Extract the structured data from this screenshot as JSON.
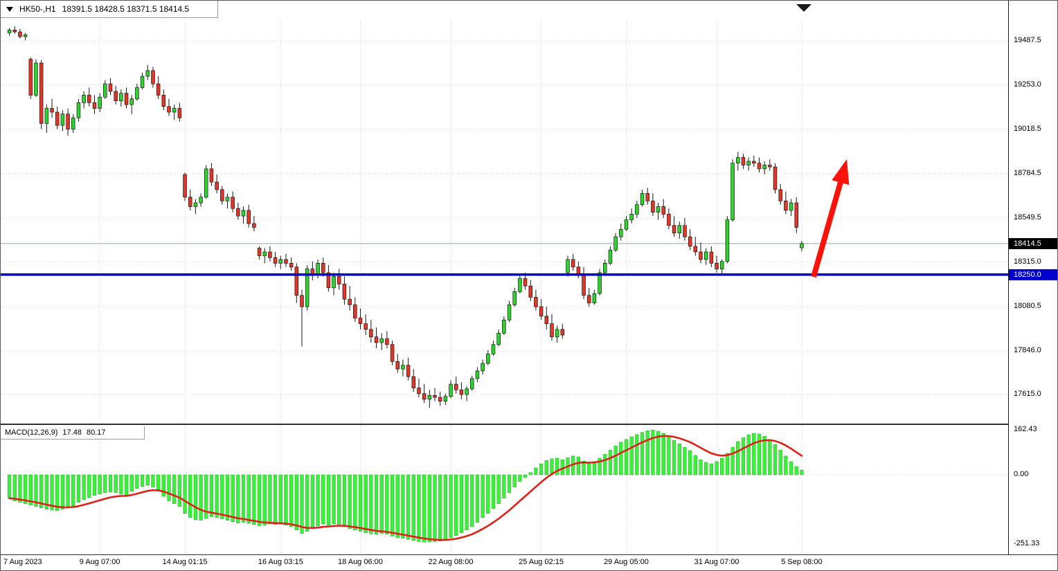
{
  "window": {
    "title_symbol": "HK50-,H1",
    "title_ohlc": "18391.5 18428.5 18371.5 18414.5"
  },
  "main_panel": {
    "axis_labels": [
      "19487.5",
      "19253.0",
      "19018.5",
      "18784.5",
      "18549.5",
      "18315.0",
      "18080.5",
      "17846.0",
      "17615.0"
    ],
    "price_tag_current": "18414.5",
    "price_tag_level": "18250.0"
  },
  "macd_panel": {
    "indicator_label": "MACD(12,26,9)",
    "value_main": "17.48",
    "value_signal": "80.17",
    "axis_labels": [
      "162.43",
      "0.00",
      "-251.33"
    ]
  },
  "time_axis": {
    "labels": [
      "7 Aug 2023",
      "9 Aug 07:00",
      "14 Aug 01:15",
      "16 Aug 03:15",
      "18 Aug 06:00",
      "22 Aug 08:00",
      "25 Aug 02:15",
      "29 Aug 05:00",
      "31 Aug 07:00",
      "5 Sep 08:00"
    ]
  },
  "colors": {
    "bull": "#2ed42e",
    "bear": "#e3362b",
    "wick": "#15170f",
    "macd_hist": "#3af23a",
    "macd_signal": "#e02015",
    "level_line": "#0202cf",
    "current_line": "#8aa6a6",
    "arrow": "#fb1309",
    "grid": "#c6c8cc",
    "tag_current_bg": "#000000",
    "tag_level_bg": "#0000cd"
  },
  "chart_data": {
    "type": "candlestick",
    "symbol": "HK50",
    "timeframe": "H1",
    "title": "HK50-,H1 18391.5 18428.5 18371.5 18414.5",
    "last_ohlc": {
      "open": 18391.5,
      "high": 18428.5,
      "low": 18371.5,
      "close": 18414.5
    },
    "current_price": 18414.5,
    "support_level": 18250.0,
    "annotation": {
      "type": "arrow-up",
      "color": "red",
      "near_price_from": 18260,
      "near_price_to": 18830
    },
    "y_ticks": [
      19487.5,
      19253.0,
      19018.5,
      18784.5,
      18549.5,
      18315.0,
      18080.5,
      17846.0,
      17615.0
    ],
    "x_labels": [
      "7 Aug 2023",
      "9 Aug 07:00",
      "14 Aug 01:15",
      "16 Aug 03:15",
      "18 Aug 06:00",
      "22 Aug 08:00",
      "25 Aug 02:15",
      "29 Aug 05:00",
      "31 Aug 07:00",
      "5 Sep 08:00"
    ],
    "x_label_indices": [
      0,
      17,
      33,
      51,
      66,
      83,
      100,
      116,
      133,
      149
    ],
    "candles": [
      [
        19530,
        19555,
        19515,
        19545
      ],
      [
        19545,
        19565,
        19525,
        19535
      ],
      [
        19535,
        19550,
        19500,
        19510
      ],
      [
        19510,
        19530,
        19490,
        19520
      ],
      [
        19390,
        19400,
        19180,
        19200
      ],
      [
        19200,
        19390,
        19190,
        19370
      ],
      [
        19370,
        19385,
        19020,
        19050
      ],
      [
        19050,
        19150,
        19000,
        19130
      ],
      [
        19130,
        19180,
        19080,
        19110
      ],
      [
        19110,
        19140,
        19020,
        19040
      ],
      [
        19040,
        19120,
        19010,
        19100
      ],
      [
        19100,
        19130,
        18985,
        19020
      ],
      [
        19020,
        19100,
        19000,
        19080
      ],
      [
        19080,
        19180,
        19060,
        19160
      ],
      [
        19160,
        19220,
        19130,
        19200
      ],
      [
        19200,
        19240,
        19140,
        19160
      ],
      [
        19160,
        19200,
        19100,
        19130
      ],
      [
        19130,
        19210,
        19110,
        19190
      ],
      [
        19190,
        19280,
        19180,
        19260
      ],
      [
        19260,
        19290,
        19200,
        19220
      ],
      [
        19220,
        19250,
        19150,
        19170
      ],
      [
        19170,
        19230,
        19140,
        19210
      ],
      [
        19210,
        19240,
        19130,
        19150
      ],
      [
        19150,
        19200,
        19100,
        19180
      ],
      [
        19180,
        19260,
        19170,
        19240
      ],
      [
        19240,
        19320,
        19230,
        19300
      ],
      [
        19300,
        19360,
        19280,
        19330
      ],
      [
        19330,
        19350,
        19240,
        19260
      ],
      [
        19260,
        19300,
        19180,
        19200
      ],
      [
        19200,
        19230,
        19120,
        19140
      ],
      [
        19140,
        19180,
        19090,
        19110
      ],
      [
        19110,
        19150,
        19070,
        19130
      ],
      [
        19130,
        19160,
        19060,
        19080
      ],
      [
        18780,
        18790,
        18640,
        18660
      ],
      [
        18660,
        18700,
        18590,
        18610
      ],
      [
        18610,
        18650,
        18570,
        18630
      ],
      [
        18630,
        18680,
        18610,
        18660
      ],
      [
        18660,
        18830,
        18650,
        18810
      ],
      [
        18810,
        18840,
        18720,
        18740
      ],
      [
        18740,
        18780,
        18680,
        18700
      ],
      [
        18700,
        18720,
        18620,
        18640
      ],
      [
        18640,
        18680,
        18600,
        18660
      ],
      [
        18660,
        18690,
        18580,
        18600
      ],
      [
        18600,
        18630,
        18540,
        18560
      ],
      [
        18560,
        18610,
        18520,
        18590
      ],
      [
        18590,
        18620,
        18500,
        18520
      ],
      [
        18520,
        18560,
        18480,
        18500
      ],
      [
        18390,
        18400,
        18330,
        18350
      ],
      [
        18350,
        18390,
        18310,
        18370
      ],
      [
        18370,
        18400,
        18320,
        18340
      ],
      [
        18340,
        18370,
        18290,
        18310
      ],
      [
        18310,
        18350,
        18280,
        18330
      ],
      [
        18330,
        18360,
        18290,
        18310
      ],
      [
        18310,
        18340,
        18270,
        18290
      ],
      [
        18290,
        18310,
        18100,
        18140
      ],
      [
        18140,
        18170,
        17870,
        18080
      ],
      [
        18080,
        18300,
        18060,
        18280
      ],
      [
        18280,
        18320,
        18220,
        18250
      ],
      [
        18250,
        18330,
        18230,
        18310
      ],
      [
        18310,
        18340,
        18240,
        18260
      ],
      [
        18260,
        18300,
        18160,
        18180
      ],
      [
        18180,
        18260,
        18140,
        18240
      ],
      [
        18240,
        18280,
        18170,
        18200
      ],
      [
        18200,
        18240,
        18090,
        18120
      ],
      [
        18120,
        18190,
        18060,
        18090
      ],
      [
        18090,
        18130,
        18000,
        18020
      ],
      [
        18020,
        18070,
        17960,
        17990
      ],
      [
        17990,
        18040,
        17930,
        17960
      ],
      [
        17960,
        18010,
        17890,
        17920
      ],
      [
        17920,
        17970,
        17860,
        17890
      ],
      [
        17890,
        17940,
        17850,
        17910
      ],
      [
        17910,
        17950,
        17860,
        17880
      ],
      [
        17880,
        17900,
        17770,
        17790
      ],
      [
        17790,
        17830,
        17730,
        17750
      ],
      [
        17750,
        17800,
        17710,
        17770
      ],
      [
        17770,
        17810,
        17690,
        17710
      ],
      [
        17710,
        17750,
        17630,
        17650
      ],
      [
        17650,
        17700,
        17600,
        17620
      ],
      [
        17620,
        17670,
        17570,
        17590
      ],
      [
        17590,
        17640,
        17545,
        17610
      ],
      [
        17610,
        17650,
        17580,
        17600
      ],
      [
        17600,
        17630,
        17555,
        17580
      ],
      [
        17580,
        17620,
        17560,
        17605
      ],
      [
        17605,
        17690,
        17595,
        17670
      ],
      [
        17670,
        17710,
        17620,
        17640
      ],
      [
        17640,
        17680,
        17590,
        17615
      ],
      [
        17615,
        17660,
        17580,
        17645
      ],
      [
        17645,
        17715,
        17635,
        17700
      ],
      [
        17700,
        17760,
        17680,
        17740
      ],
      [
        17740,
        17800,
        17720,
        17780
      ],
      [
        17780,
        17850,
        17770,
        17830
      ],
      [
        17830,
        17900,
        17820,
        17880
      ],
      [
        17880,
        17960,
        17870,
        17940
      ],
      [
        17940,
        18030,
        17930,
        18010
      ],
      [
        18010,
        18110,
        18000,
        18090
      ],
      [
        18090,
        18180,
        18080,
        18160
      ],
      [
        18160,
        18250,
        18150,
        18230
      ],
      [
        18230,
        18260,
        18170,
        18190
      ],
      [
        18190,
        18220,
        18110,
        18130
      ],
      [
        18130,
        18170,
        18060,
        18080
      ],
      [
        18080,
        18120,
        18010,
        18030
      ],
      [
        18030,
        18080,
        17960,
        17990
      ],
      [
        17990,
        18040,
        17900,
        17920
      ],
      [
        17920,
        17980,
        17890,
        17960
      ],
      [
        17960,
        17990,
        17910,
        17930
      ],
      [
        18260,
        18350,
        18240,
        18330
      ],
      [
        18330,
        18360,
        18270,
        18290
      ],
      [
        18290,
        18320,
        18230,
        18250
      ],
      [
        18250,
        18290,
        18120,
        18140
      ],
      [
        18140,
        18180,
        18080,
        18100
      ],
      [
        18100,
        18170,
        18090,
        18150
      ],
      [
        18150,
        18280,
        18140,
        18260
      ],
      [
        18260,
        18330,
        18250,
        18310
      ],
      [
        18310,
        18400,
        18300,
        18380
      ],
      [
        18380,
        18470,
        18370,
        18450
      ],
      [
        18450,
        18520,
        18430,
        18490
      ],
      [
        18490,
        18560,
        18480,
        18540
      ],
      [
        18540,
        18600,
        18520,
        18570
      ],
      [
        18570,
        18640,
        18550,
        18620
      ],
      [
        18620,
        18700,
        18610,
        18680
      ],
      [
        18680,
        18710,
        18620,
        18640
      ],
      [
        18640,
        18680,
        18560,
        18580
      ],
      [
        18580,
        18630,
        18540,
        18610
      ],
      [
        18610,
        18650,
        18550,
        18570
      ],
      [
        18570,
        18600,
        18490,
        18510
      ],
      [
        18510,
        18560,
        18450,
        18470
      ],
      [
        18470,
        18530,
        18440,
        18510
      ],
      [
        18510,
        18550,
        18430,
        18450
      ],
      [
        18450,
        18490,
        18380,
        18400
      ],
      [
        18400,
        18450,
        18350,
        18370
      ],
      [
        18370,
        18420,
        18310,
        18330
      ],
      [
        18330,
        18390,
        18300,
        18370
      ],
      [
        18370,
        18400,
        18290,
        18310
      ],
      [
        18310,
        18350,
        18260,
        18280
      ],
      [
        18280,
        18330,
        18250,
        18320
      ],
      [
        18320,
        18560,
        18310,
        18540
      ],
      [
        18540,
        18860,
        18530,
        18840
      ],
      [
        18840,
        18900,
        18800,
        18870
      ],
      [
        18870,
        18890,
        18810,
        18830
      ],
      [
        18830,
        18870,
        18800,
        18850
      ],
      [
        18850,
        18880,
        18820,
        18840
      ],
      [
        18840,
        18870,
        18790,
        18810
      ],
      [
        18810,
        18850,
        18780,
        18830
      ],
      [
        18830,
        18860,
        18800,
        18820
      ],
      [
        18820,
        18840,
        18680,
        18700
      ],
      [
        18700,
        18730,
        18620,
        18640
      ],
      [
        18640,
        18690,
        18570,
        18590
      ],
      [
        18590,
        18650,
        18560,
        18630
      ],
      [
        18630,
        18660,
        18470,
        18500
      ],
      [
        18391.5,
        18428.5,
        18371.5,
        18414.5
      ]
    ],
    "macd": {
      "params": "12,26,9",
      "signal_period": 9,
      "last_main": 17.48,
      "last_signal": 80.17,
      "axis_max": 162.43,
      "axis_min": -251.33,
      "axis_ticks": [
        162.43,
        0,
        -251.33
      ],
      "histogram": [
        -85,
        -95,
        -100,
        -105,
        -110,
        -115,
        -120,
        -125,
        -128,
        -130,
        -125,
        -120,
        -112,
        -100,
        -90,
        -82,
        -75,
        -70,
        -65,
        -62,
        -65,
        -70,
        -75,
        -60,
        -50,
        -42,
        -38,
        -45,
        -60,
        -78,
        -95,
        -105,
        -115,
        -140,
        -155,
        -162,
        -165,
        -158,
        -152,
        -155,
        -160,
        -165,
        -170,
        -175,
        -172,
        -176,
        -180,
        -185,
        -182,
        -178,
        -180,
        -178,
        -182,
        -188,
        -200,
        -212,
        -205,
        -195,
        -185,
        -178,
        -182,
        -178,
        -180,
        -188,
        -195,
        -200,
        -205,
        -210,
        -214,
        -216,
        -212,
        -215,
        -222,
        -228,
        -230,
        -234,
        -238,
        -242,
        -244,
        -243,
        -242,
        -240,
        -236,
        -228,
        -220,
        -210,
        -200,
        -188,
        -172,
        -155,
        -140,
        -122,
        -105,
        -85,
        -65,
        -45,
        -25,
        -10,
        8,
        25,
        40,
        52,
        58,
        60,
        55,
        62,
        68,
        65,
        50,
        42,
        48,
        60,
        75,
        90,
        105,
        118,
        128,
        138,
        146,
        154,
        160,
        162.43,
        158,
        150,
        140,
        125,
        112,
        100,
        88,
        70,
        55,
        45,
        40,
        48,
        60,
        78,
        100,
        120,
        135,
        145,
        150,
        148,
        140,
        128,
        110,
        90,
        68,
        48,
        30,
        17.48
      ]
    }
  }
}
